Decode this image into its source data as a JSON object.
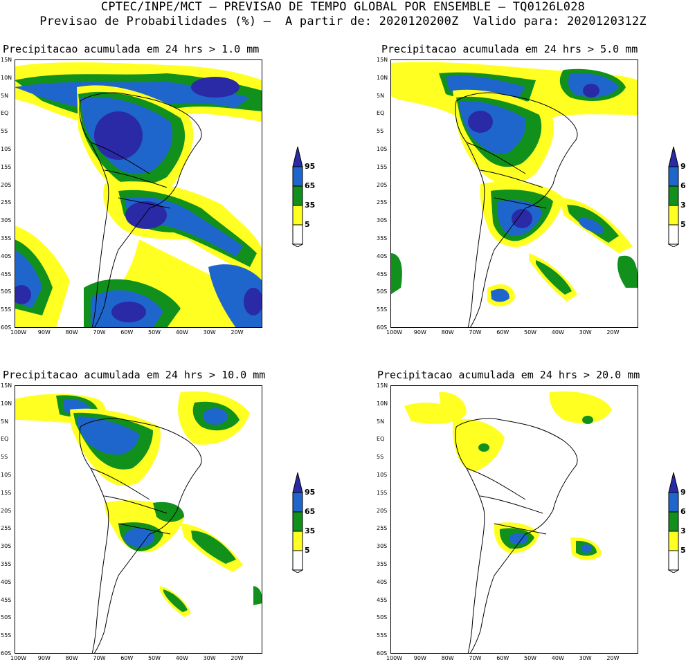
{
  "header": {
    "line1": "CPTEC/INPE/MCT — PREVISAO DE TEMPO GLOBAL POR ENSEMBLE — TQ0126L028",
    "line2": "Previsao de Probabilidades (%) —  A partir de: 2020120200Z  Valido para: 2020120312Z"
  },
  "panels": [
    {
      "title": "Precipitacao acumulada em 24 hrs > 1.0 mm"
    },
    {
      "title": "Precipitacao acumulada em 24 hrs > 5.0 mm"
    },
    {
      "title": "Precipitacao acumulada em 24 hrs > 10.0 mm"
    },
    {
      "title": "Precipitacao acumulada em 24 hrs > 20.0 mm"
    }
  ],
  "axes": {
    "lat_labels": [
      "15N",
      "10N",
      "5N",
      "EQ",
      "5S",
      "10S",
      "15S",
      "20S",
      "25S",
      "30S",
      "35S",
      "40S",
      "45S",
      "50S",
      "55S",
      "60S"
    ],
    "lon_labels": [
      "100W",
      "90W",
      "80W",
      "70W",
      "60W",
      "50W",
      "40W",
      "30W",
      "20W"
    ]
  },
  "legend": {
    "levels": [
      "95",
      "65",
      "35",
      "5"
    ],
    "colors": {
      "c95": "#2a2aa6",
      "c65": "#1f66cc",
      "c35": "#11901c",
      "c5": "#ffff22"
    }
  }
}
